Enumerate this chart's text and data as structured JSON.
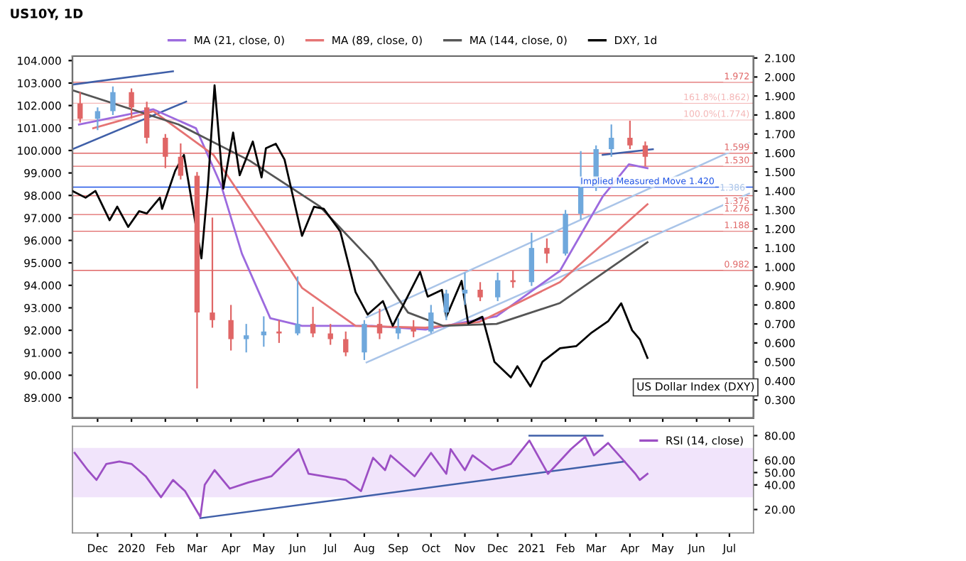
{
  "chart_data": [
    {
      "type": "candlestick",
      "title": "US10Y, 1D",
      "legend": "top",
      "tick_labels": "y",
      "xlim": [
        "2019-11-08",
        "2021-07-23"
      ],
      "xticks": [
        {
          "value": "2019-12-01",
          "label": null
        },
        {
          "value": "2020-01-01",
          "label": null
        },
        {
          "value": "2020-02-01",
          "label": null
        },
        {
          "value": "2020-03-01",
          "label": null
        },
        {
          "value": "2020-04-01",
          "label": null
        },
        {
          "value": "2020-05-01",
          "label": null
        },
        {
          "value": "2020-06-01",
          "label": null
        },
        {
          "value": "2020-07-01",
          "label": null
        },
        {
          "value": "2020-08-01",
          "label": null
        },
        {
          "value": "2020-09-01",
          "label": null
        },
        {
          "value": "2020-10-01",
          "label": null
        },
        {
          "value": "2020-11-01",
          "label": null
        },
        {
          "value": "2020-12-01",
          "label": null
        },
        {
          "value": "2021-01-01",
          "label": null
        },
        {
          "value": "2021-02-01",
          "label": null
        },
        {
          "value": "2021-03-01",
          "label": null
        },
        {
          "value": "2021-04-01",
          "label": null
        },
        {
          "value": "2021-05-01",
          "label": null
        },
        {
          "value": "2021-06-01",
          "label": null
        },
        {
          "value": "2021-07-01",
          "label": null
        }
      ],
      "ylim": [
        88.1,
        104.2
      ],
      "yticks": [
        {
          "value": 89,
          "label": "89.000"
        },
        {
          "value": 90,
          "label": "90.000"
        },
        {
          "value": 91,
          "label": "91.000"
        },
        {
          "value": 92,
          "label": "92.000"
        },
        {
          "value": 93,
          "label": "93.000"
        },
        {
          "value": 94,
          "label": "94.000"
        },
        {
          "value": 95,
          "label": "95.000"
        },
        {
          "value": 96,
          "label": "96.000"
        },
        {
          "value": 97,
          "label": "97.000"
        },
        {
          "value": 98,
          "label": "98.000"
        },
        {
          "value": 99,
          "label": "99.000"
        },
        {
          "value": 100,
          "label": "100.000"
        },
        {
          "value": 101,
          "label": "101.000"
        },
        {
          "value": 102,
          "label": "102.000"
        },
        {
          "value": 103,
          "label": "103.000"
        },
        {
          "value": 104,
          "label": "104.000"
        }
      ],
      "y2lim": [
        0.205,
        2.11
      ],
      "y2ticks": [
        {
          "value": 0.3,
          "label": "0.300"
        },
        {
          "value": 0.4,
          "label": "0.400"
        },
        {
          "value": 0.5,
          "label": "0.500"
        },
        {
          "value": 0.6,
          "label": "0.600"
        },
        {
          "value": 0.7,
          "label": "0.700"
        },
        {
          "value": 0.8,
          "label": "0.800"
        },
        {
          "value": 0.9,
          "label": "0.900"
        },
        {
          "value": 1.0,
          "label": "1.000"
        },
        {
          "value": 1.1,
          "label": "1.100"
        },
        {
          "value": 1.2,
          "label": "1.200"
        },
        {
          "value": 1.3,
          "label": "1.300"
        },
        {
          "value": 1.4,
          "label": "1.400"
        },
        {
          "value": 1.5,
          "label": "1.500"
        },
        {
          "value": 1.6,
          "label": "1.600"
        },
        {
          "value": 1.7,
          "label": "1.700"
        },
        {
          "value": 1.8,
          "label": "1.800"
        },
        {
          "value": 1.9,
          "label": "1.900"
        },
        {
          "value": 2.0,
          "label": "2.000"
        },
        {
          "value": 2.1,
          "label": "2.100"
        }
      ],
      "ref_lines": [
        {
          "axis": "y2",
          "value": 1.972,
          "label": "1.972",
          "color": "#e06666"
        },
        {
          "axis": "y2",
          "value": 1.862,
          "label": "161.8%(1.862)",
          "color": "#f4b6b6"
        },
        {
          "axis": "y2",
          "value": 1.774,
          "label": "100.0%(1.774)",
          "color": "#f4b6b6"
        },
        {
          "axis": "y2",
          "value": 1.599,
          "label": "1.599",
          "color": "#e06666"
        },
        {
          "axis": "y2",
          "value": 1.53,
          "label": "1.530",
          "color": "#e06666"
        },
        {
          "axis": "y2",
          "value": 1.42,
          "label": "Implied Measured Move 1.420",
          "color": "#1e53e5"
        },
        {
          "axis": "y2",
          "value": 1.375,
          "label": "1.375",
          "color": "#e06666"
        },
        {
          "axis": "y2",
          "value": 1.276,
          "label": "1.276",
          "color": "#e06666"
        },
        {
          "axis": "y2",
          "value": 1.188,
          "label": "1.188",
          "color": "#e06666"
        },
        {
          "axis": "y2",
          "value": 0.982,
          "label": "0.982",
          "color": "#e06666"
        }
      ],
      "annotations": [
        "US Dollar Index (DXY)"
      ],
      "series": [
        {
          "type": "candlestick",
          "axis": "y2",
          "x": [
            "2019-11-15",
            "2019-12-01",
            "2019-12-15",
            "2020-01-01",
            "2020-01-15",
            "2020-02-01",
            "2020-02-15",
            "2020-03-01",
            "2020-03-15",
            "2020-04-01",
            "2020-04-15",
            "2020-05-01",
            "2020-05-15",
            "2020-06-01",
            "2020-06-15",
            "2020-07-01",
            "2020-07-15",
            "2020-08-01",
            "2020-08-15",
            "2020-09-01",
            "2020-09-15",
            "2020-10-01",
            "2020-10-15",
            "2020-11-01",
            "2020-11-15",
            "2020-12-01",
            "2020-12-15",
            "2021-01-01",
            "2021-01-15",
            "2021-02-01",
            "2021-02-15",
            "2021-03-01",
            "2021-03-15",
            "2021-04-01",
            "2021-04-15"
          ],
          "ohlc": [
            [
              1.86,
              1.92,
              1.76,
              1.78
            ],
            [
              1.78,
              1.84,
              1.72,
              1.82
            ],
            [
              1.82,
              1.95,
              1.8,
              1.92
            ],
            [
              1.92,
              1.94,
              1.78,
              1.84
            ],
            [
              1.84,
              1.87,
              1.65,
              1.68
            ],
            [
              1.68,
              1.7,
              1.52,
              1.58
            ],
            [
              1.58,
              1.65,
              1.46,
              1.48
            ],
            [
              1.48,
              1.5,
              0.36,
              0.76
            ],
            [
              0.76,
              1.26,
              0.68,
              0.72
            ],
            [
              0.72,
              0.8,
              0.56,
              0.62
            ],
            [
              0.62,
              0.7,
              0.55,
              0.64
            ],
            [
              0.64,
              0.74,
              0.58,
              0.66
            ],
            [
              0.66,
              0.72,
              0.6,
              0.65
            ],
            [
              0.65,
              0.95,
              0.64,
              0.7
            ],
            [
              0.7,
              0.79,
              0.63,
              0.65
            ],
            [
              0.65,
              0.7,
              0.59,
              0.62
            ],
            [
              0.62,
              0.66,
              0.53,
              0.55
            ],
            [
              0.55,
              0.72,
              0.51,
              0.7
            ],
            [
              0.7,
              0.78,
              0.62,
              0.65
            ],
            [
              0.65,
              0.73,
              0.62,
              0.68
            ],
            [
              0.68,
              0.72,
              0.63,
              0.66
            ],
            [
              0.66,
              0.8,
              0.65,
              0.76
            ],
            [
              0.76,
              0.88,
              0.72,
              0.86
            ],
            [
              0.86,
              0.97,
              0.8,
              0.88
            ],
            [
              0.88,
              0.92,
              0.82,
              0.84
            ],
            [
              0.84,
              0.97,
              0.82,
              0.93
            ],
            [
              0.93,
              0.98,
              0.89,
              0.92
            ],
            [
              0.92,
              1.18,
              0.9,
              1.1
            ],
            [
              1.1,
              1.15,
              1.02,
              1.07
            ],
            [
              1.07,
              1.3,
              1.06,
              1.28
            ],
            [
              1.28,
              1.61,
              1.25,
              1.42
            ],
            [
              1.42,
              1.64,
              1.4,
              1.62
            ],
            [
              1.62,
              1.75,
              1.58,
              1.68
            ],
            [
              1.68,
              1.77,
              1.62,
              1.64
            ],
            [
              1.64,
              1.66,
              1.53,
              1.58
            ]
          ],
          "colors": [
            "#e06666",
            "#6fa8dc",
            "#6fa8dc",
            "#e06666",
            "#e06666",
            "#e06666",
            "#e06666",
            "#e06666",
            "#e06666",
            "#e06666",
            "#6fa8dc",
            "#6fa8dc",
            "#e06666",
            "#6fa8dc",
            "#e06666",
            "#e06666",
            "#e06666",
            "#6fa8dc",
            "#e06666",
            "#6fa8dc",
            "#e06666",
            "#6fa8dc",
            "#6fa8dc",
            "#6fa8dc",
            "#e06666",
            "#6fa8dc",
            "#e06666",
            "#6fa8dc",
            "#e06666",
            "#6fa8dc",
            "#6fa8dc",
            "#6fa8dc",
            "#6fa8dc",
            "#e06666",
            "#e06666"
          ]
        },
        {
          "type": "line",
          "axis": "y2",
          "name": "MA (21, close, 0)",
          "color": "#9c6ade",
          "x": [
            "2019-11-14",
            "2020-01-21",
            "2020-02-29",
            "2020-03-23",
            "2020-04-11",
            "2020-05-07",
            "2020-06-05",
            "2020-08-08",
            "2020-09-26",
            "2020-11-30",
            "2021-01-27",
            "2021-03-07",
            "2021-03-31",
            "2021-04-17"
          ],
          "values": [
            1.75,
            1.83,
            1.73,
            1.43,
            1.07,
            0.73,
            0.69,
            0.69,
            0.67,
            0.74,
            0.98,
            1.37,
            1.54,
            1.52
          ]
        },
        {
          "type": "line",
          "axis": "y2",
          "name": "MA (89, close, 0)",
          "color": "#e57373",
          "x": [
            "2019-11-27",
            "2020-01-21",
            "2020-03-16",
            "2020-05-03",
            "2020-06-05",
            "2020-07-24",
            "2020-09-26",
            "2020-11-14",
            "2021-01-27",
            "2021-04-17"
          ],
          "values": [
            1.73,
            1.82,
            1.59,
            1.18,
            0.89,
            0.69,
            0.68,
            0.71,
            0.92,
            1.33
          ]
        },
        {
          "type": "line",
          "axis": "y2",
          "name": "MA (144, close, 0)",
          "color": "#555555",
          "x": [
            "2019-11-08",
            "2020-02-13",
            "2020-04-18",
            "2020-06-21",
            "2020-08-08",
            "2020-09-10",
            "2020-10-12",
            "2020-11-30",
            "2021-01-27",
            "2021-04-17"
          ],
          "values": [
            1.93,
            1.75,
            1.56,
            1.32,
            1.03,
            0.76,
            0.69,
            0.7,
            0.81,
            1.13
          ]
        },
        {
          "type": "line",
          "name": "DXY, 1d",
          "color": "#000000",
          "x": [
            "2019-11-08",
            "2019-11-20",
            "2019-11-29",
            "2019-12-12",
            "2019-12-19",
            "2019-12-29",
            "2020-01-08",
            "2020-01-15",
            "2020-01-27",
            "2020-01-29",
            "2020-02-10",
            "2020-02-18",
            "2020-02-27",
            "2020-03-05",
            "2020-03-11",
            "2020-03-17",
            "2020-03-25",
            "2020-04-03",
            "2020-04-09",
            "2020-04-21",
            "2020-04-29",
            "2020-05-03",
            "2020-05-12",
            "2020-05-20",
            "2020-06-05",
            "2020-06-16",
            "2020-06-25",
            "2020-07-10",
            "2020-07-24",
            "2020-08-04",
            "2020-08-18",
            "2020-08-27",
            "2020-09-21",
            "2020-09-28",
            "2020-10-11",
            "2020-10-15",
            "2020-10-29",
            "2020-11-04",
            "2020-11-17",
            "2020-11-28",
            "2020-12-13",
            "2020-12-19",
            "2020-12-31",
            "2021-01-11",
            "2021-01-27",
            "2021-02-11",
            "2021-02-25",
            "2021-03-12",
            "2021-03-24",
            "2021-04-03",
            "2021-04-10",
            "2021-04-17"
          ],
          "values": [
            98.2,
            97.9,
            98.2,
            96.9,
            97.5,
            96.6,
            97.3,
            97.2,
            97.9,
            97.4,
            99.1,
            99.8,
            97.2,
            95.2,
            98.5,
            102.9,
            98.3,
            100.8,
            98.9,
            100.4,
            98.8,
            100.1,
            100.3,
            99.6,
            96.2,
            97.5,
            97.4,
            96.4,
            93.7,
            92.7,
            93.3,
            92.2,
            94.6,
            93.5,
            93.8,
            92.6,
            94.2,
            92.3,
            92.6,
            90.6,
            89.9,
            90.4,
            89.5,
            90.6,
            91.2,
            91.3,
            91.9,
            92.4,
            93.2,
            92.0,
            91.6,
            90.77
          ]
        },
        {
          "type": "line",
          "axis": "y2",
          "color": "#3f5fa8",
          "x": [
            "2019-11-08",
            "2020-02-08"
          ],
          "values": [
            1.96,
            2.03
          ]
        },
        {
          "type": "line",
          "axis": "y2",
          "color": "#3f5fa8",
          "x": [
            "2019-11-08",
            "2020-02-20"
          ],
          "values": [
            1.62,
            1.87
          ]
        },
        {
          "type": "line",
          "axis": "y2",
          "color": "#3f5fa8",
          "x": [
            "2021-03-07",
            "2021-04-22"
          ],
          "values": [
            1.59,
            1.62
          ]
        },
        {
          "type": "line",
          "axis": "y2",
          "color": "#a9c4e8",
          "x": [
            "2020-08-03",
            "2021-07-19"
          ],
          "values": [
            0.735,
            1.652
          ]
        },
        {
          "type": "line",
          "axis": "y2",
          "color": "#a9c4e8",
          "x": [
            "2020-08-03",
            "2021-07-19"
          ],
          "values": [
            0.497,
            1.386
          ],
          "value_labels": [
            null,
            "1.386"
          ]
        }
      ]
    },
    {
      "type": "line",
      "legend": "top right",
      "xlim": [
        "2019-11-08",
        "2021-07-23"
      ],
      "xticks": [
        {
          "value": "2019-12-01",
          "label": "Dec"
        },
        {
          "value": "2020-01-01",
          "label": "2020"
        },
        {
          "value": "2020-02-01",
          "label": "Feb"
        },
        {
          "value": "2020-03-01",
          "label": "Mar"
        },
        {
          "value": "2020-04-01",
          "label": "Apr"
        },
        {
          "value": "2020-05-01",
          "label": "May"
        },
        {
          "value": "2020-06-01",
          "label": "Jun"
        },
        {
          "value": "2020-07-01",
          "label": "Jul"
        },
        {
          "value": "2020-08-01",
          "label": "Aug"
        },
        {
          "value": "2020-09-01",
          "label": "Sep"
        },
        {
          "value": "2020-10-01",
          "label": "Oct"
        },
        {
          "value": "2020-11-01",
          "label": "Nov"
        },
        {
          "value": "2020-12-01",
          "label": "Dec"
        },
        {
          "value": "2021-01-01",
          "label": "2021"
        },
        {
          "value": "2021-02-01",
          "label": "Feb"
        },
        {
          "value": "2021-03-01",
          "label": "Mar"
        },
        {
          "value": "2021-04-01",
          "label": "Apr"
        },
        {
          "value": "2021-05-01",
          "label": "May"
        },
        {
          "value": "2021-06-01",
          "label": "Jun"
        },
        {
          "value": "2021-07-01",
          "label": "Jul"
        }
      ],
      "ylim": [
        1,
        87.5
      ],
      "yticks": [
        {
          "value": 20,
          "label": "20.00"
        },
        {
          "value": 40,
          "label": "40.00"
        },
        {
          "value": 50,
          "label": "50.00"
        },
        {
          "value": 60,
          "label": "60.00"
        },
        {
          "value": 80,
          "label": "80.00"
        }
      ],
      "bands": [
        {
          "axis": "y",
          "from": 30,
          "to": 70,
          "color": "#f1e4fb"
        }
      ],
      "series": [
        {
          "name": "RSI (14, close)",
          "color": "#9c4fc4",
          "x": [
            "2019-11-10",
            "2019-11-22",
            "2019-11-30",
            "2019-12-09",
            "2019-12-21",
            "2020-01-01",
            "2020-01-14",
            "2020-01-28",
            "2020-02-08",
            "2020-02-19",
            "2020-03-04",
            "2020-03-08",
            "2020-03-17",
            "2020-03-31",
            "2020-04-17",
            "2020-05-08",
            "2020-06-02",
            "2020-06-11",
            "2020-07-15",
            "2020-07-29",
            "2020-08-09",
            "2020-08-20",
            "2020-08-25",
            "2020-09-16",
            "2020-10-01",
            "2020-10-15",
            "2020-10-19",
            "2020-11-01",
            "2020-11-08",
            "2020-11-26",
            "2020-12-13",
            "2020-12-30",
            "2021-01-16",
            "2021-02-06",
            "2021-02-19",
            "2021-02-27",
            "2021-03-12",
            "2021-03-27",
            "2021-04-06",
            "2021-04-10",
            "2021-04-17"
          ],
          "values": [
            66,
            52,
            44,
            57,
            59,
            57,
            47,
            30,
            44,
            35,
            14,
            40,
            52,
            37,
            42,
            47,
            69,
            49,
            44,
            35,
            62,
            52,
            64,
            47,
            66,
            49,
            69,
            52,
            64,
            52,
            57,
            76,
            49,
            69,
            79,
            64,
            74,
            59,
            49,
            44,
            49
          ]
        },
        {
          "color": "#3f5fa8",
          "x": [
            "2020-03-04",
            "2021-03-27"
          ],
          "values": [
            13,
            59
          ]
        },
        {
          "color": "#3f5fa8",
          "x": [
            "2020-12-30",
            "2021-03-07"
          ],
          "values": [
            80,
            80
          ]
        }
      ]
    }
  ]
}
